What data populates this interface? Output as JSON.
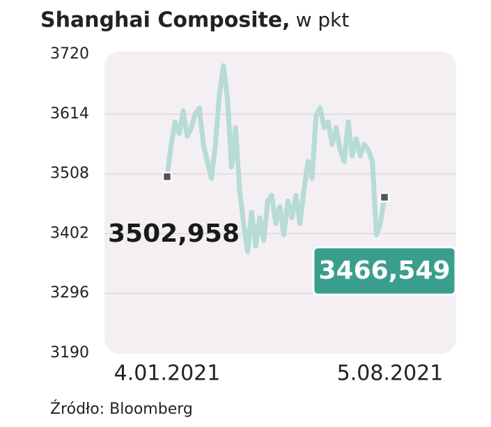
{
  "chart_data": {
    "type": "line",
    "title": "Shanghai Composite,",
    "unit": "w pkt",
    "source": "Źródło: Bloomberg",
    "categories": [
      "4.01.2021",
      null,
      null,
      null,
      null,
      null,
      null,
      null,
      null,
      null,
      null,
      null,
      null,
      null,
      null,
      null,
      null,
      null,
      null,
      null,
      null,
      null,
      null,
      null,
      null,
      null,
      null,
      null,
      null,
      null,
      null,
      null,
      null,
      null,
      null,
      null,
      null,
      null,
      null,
      null,
      null,
      null,
      null,
      null,
      null,
      null,
      null,
      null,
      null,
      null,
      null,
      null,
      null,
      null,
      "5.08.2021"
    ],
    "values": [
      3502.958,
      3560,
      3600,
      3580,
      3620,
      3575,
      3590,
      3615,
      3625,
      3560,
      3530,
      3500,
      3560,
      3650,
      3700,
      3640,
      3520,
      3590,
      3480,
      3420,
      3370,
      3440,
      3380,
      3430,
      3390,
      3460,
      3470,
      3420,
      3450,
      3400,
      3460,
      3430,
      3470,
      3420,
      3480,
      3530,
      3500,
      3610,
      3625,
      3590,
      3600,
      3560,
      3590,
      3550,
      3530,
      3600,
      3540,
      3570,
      3540,
      3560,
      3550,
      3530,
      3400,
      3420,
      3466.549
    ],
    "value_labels": [
      "3502,958",
      null,
      null,
      null,
      null,
      null,
      null,
      null,
      null,
      null,
      null,
      null,
      null,
      null,
      null,
      null,
      null,
      null,
      null,
      null,
      null,
      null,
      null,
      null,
      null,
      null,
      null,
      null,
      null,
      null,
      null,
      null,
      null,
      null,
      null,
      null,
      null,
      null,
      null,
      null,
      null,
      null,
      null,
      null,
      null,
      null,
      null,
      null,
      null,
      null,
      null,
      null,
      null,
      null,
      "3466,549"
    ],
    "color": "#b7dbd5",
    "ylim": [
      3190,
      3720
    ],
    "yticks": [
      3190,
      3296,
      3402,
      3508,
      3614,
      3720
    ],
    "grid": true
  }
}
